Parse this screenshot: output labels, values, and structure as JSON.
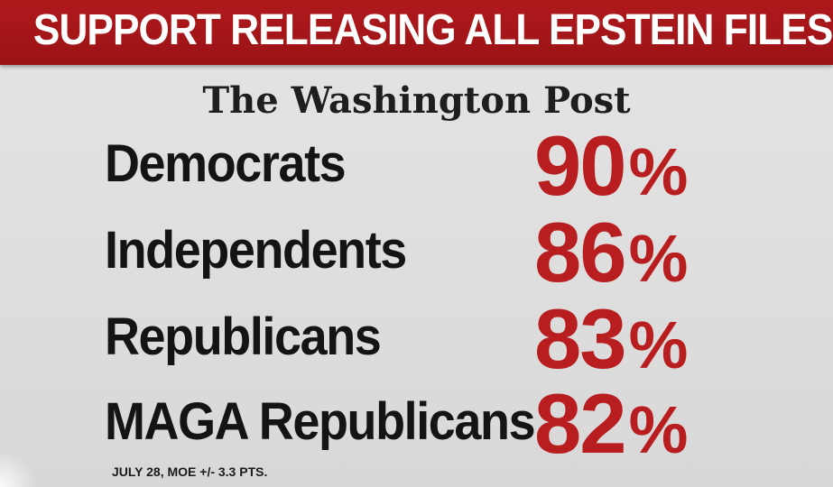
{
  "banner": {
    "title": "SUPPORT RELEASING ALL EPSTEIN FILES"
  },
  "source": {
    "name": "The Washington Post"
  },
  "rows": [
    {
      "label": "Democrats",
      "value": "90",
      "unit": "%"
    },
    {
      "label": "Independents",
      "value": "86",
      "unit": "%"
    },
    {
      "label": "Republicans",
      "value": "83",
      "unit": "%"
    },
    {
      "label": "MAGA Republicans",
      "value": "82",
      "unit": "%"
    }
  ],
  "footnote": "JULY 28, MOE +/- 3.3 PTS.",
  "colors": {
    "banner": "#a8171a",
    "value": "#b81e1f",
    "text": "#141414",
    "background": "#e0e0e0"
  }
}
